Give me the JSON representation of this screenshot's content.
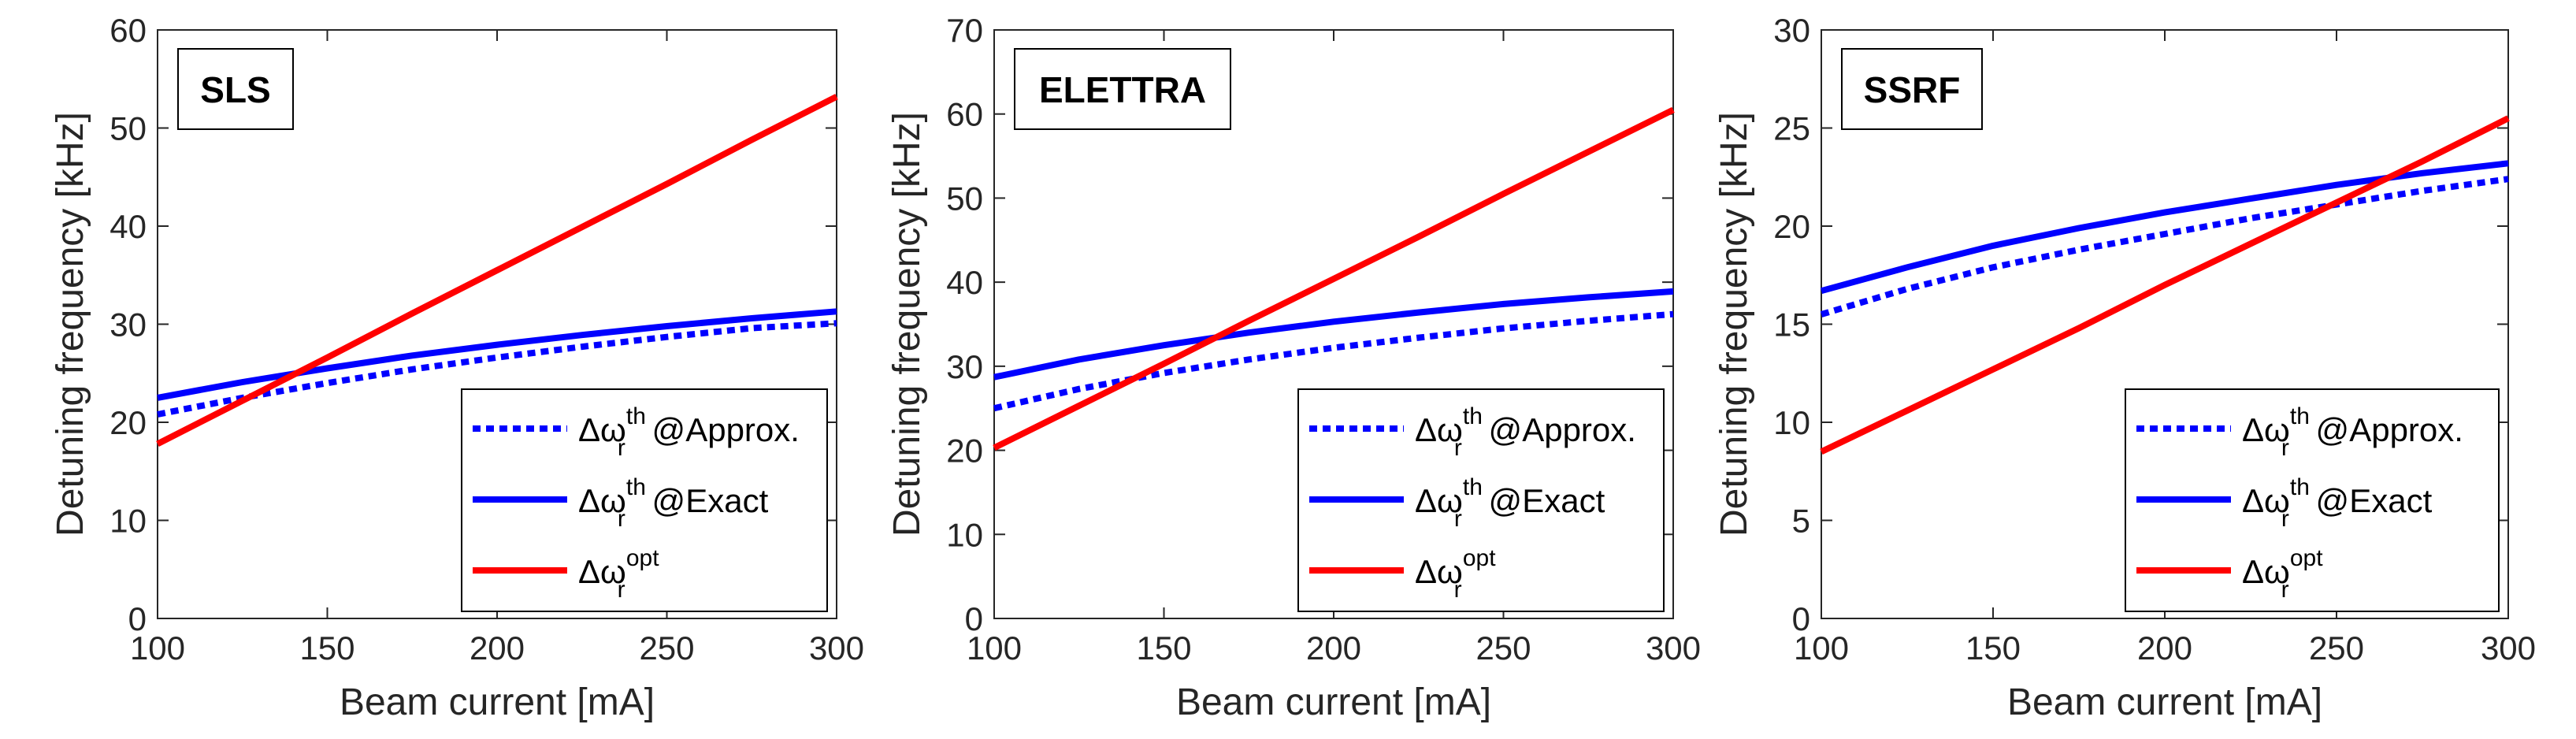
{
  "colors": {
    "approx": "#0000ff",
    "exact": "#0000ff",
    "optimal": "#ff0000",
    "axis": "#262626",
    "background": "#ffffff"
  },
  "legend": {
    "entries": [
      {
        "id": "approx",
        "base": "Δω",
        "sub": "r",
        "sup": "th",
        "suffix": " @Approx.",
        "style": "dotted"
      },
      {
        "id": "exact",
        "base": "Δω",
        "sub": "r",
        "sup": "th",
        "suffix": " @Exact",
        "style": "solid"
      },
      {
        "id": "optimal",
        "base": "Δω",
        "sub": "r",
        "sup": "opt",
        "suffix": "",
        "style": "solid"
      }
    ]
  },
  "chart_data": [
    {
      "type": "line",
      "title": "SLS",
      "xlabel": "Beam current [mA]",
      "ylabel": "Detuning frequency [kHz]",
      "xlim": [
        100,
        300
      ],
      "ylim": [
        0,
        60
      ],
      "xticks": [
        100,
        150,
        200,
        250,
        300
      ],
      "yticks": [
        0,
        10,
        20,
        30,
        40,
        50,
        60
      ],
      "x": [
        100,
        125,
        150,
        175,
        200,
        225,
        250,
        275,
        300
      ],
      "series": [
        {
          "id": "approx",
          "name": "Δωr th @Approx.",
          "values": [
            20.8,
            22.5,
            24.0,
            25.4,
            26.6,
            27.7,
            28.7,
            29.6,
            30.1
          ]
        },
        {
          "id": "exact",
          "name": "Δωr th @Exact",
          "values": [
            22.5,
            24.1,
            25.5,
            26.8,
            27.9,
            28.9,
            29.8,
            30.6,
            31.3
          ]
        },
        {
          "id": "optimal",
          "name": "Δωr opt",
          "values": [
            17.8,
            22.2,
            26.6,
            31.1,
            35.5,
            39.9,
            44.3,
            48.8,
            53.2
          ]
        }
      ]
    },
    {
      "type": "line",
      "title": "ELETTRA",
      "xlabel": "Beam current [mA]",
      "ylabel": "Detuning frequency [kHz]",
      "xlim": [
        100,
        300
      ],
      "ylim": [
        0,
        70
      ],
      "xticks": [
        100,
        150,
        200,
        250,
        300
      ],
      "yticks": [
        0,
        10,
        20,
        30,
        40,
        50,
        60,
        70
      ],
      "x": [
        100,
        125,
        150,
        175,
        200,
        225,
        250,
        275,
        300
      ],
      "series": [
        {
          "id": "approx",
          "name": "Δωr th @Approx.",
          "values": [
            25.0,
            27.3,
            29.2,
            30.8,
            32.2,
            33.4,
            34.5,
            35.4,
            36.2
          ]
        },
        {
          "id": "exact",
          "name": "Δωr th @Exact",
          "values": [
            28.7,
            30.8,
            32.5,
            34.0,
            35.3,
            36.4,
            37.4,
            38.2,
            38.9
          ]
        },
        {
          "id": "optimal",
          "name": "Δωr opt",
          "values": [
            20.3,
            25.3,
            30.3,
            35.4,
            40.4,
            45.4,
            50.5,
            55.5,
            60.5
          ]
        }
      ]
    },
    {
      "type": "line",
      "title": "SSRF",
      "xlabel": "Beam current [mA]",
      "ylabel": "Detuning frequency [kHz]",
      "xlim": [
        100,
        300
      ],
      "ylim": [
        0,
        30
      ],
      "xticks": [
        100,
        150,
        200,
        250,
        300
      ],
      "yticks": [
        0,
        5,
        10,
        15,
        20,
        25,
        30
      ],
      "x": [
        100,
        125,
        150,
        175,
        200,
        225,
        250,
        275,
        300
      ],
      "series": [
        {
          "id": "approx",
          "name": "Δωr th @Approx.",
          "values": [
            15.5,
            16.8,
            17.9,
            18.8,
            19.6,
            20.4,
            21.1,
            21.8,
            22.4
          ]
        },
        {
          "id": "exact",
          "name": "Δωr th @Exact",
          "values": [
            16.7,
            17.9,
            19.0,
            19.9,
            20.7,
            21.4,
            22.1,
            22.7,
            23.2
          ]
        },
        {
          "id": "optimal",
          "name": "Δωr opt",
          "values": [
            8.5,
            10.6,
            12.7,
            14.8,
            17.0,
            19.1,
            21.2,
            23.3,
            25.5
          ]
        }
      ]
    }
  ]
}
